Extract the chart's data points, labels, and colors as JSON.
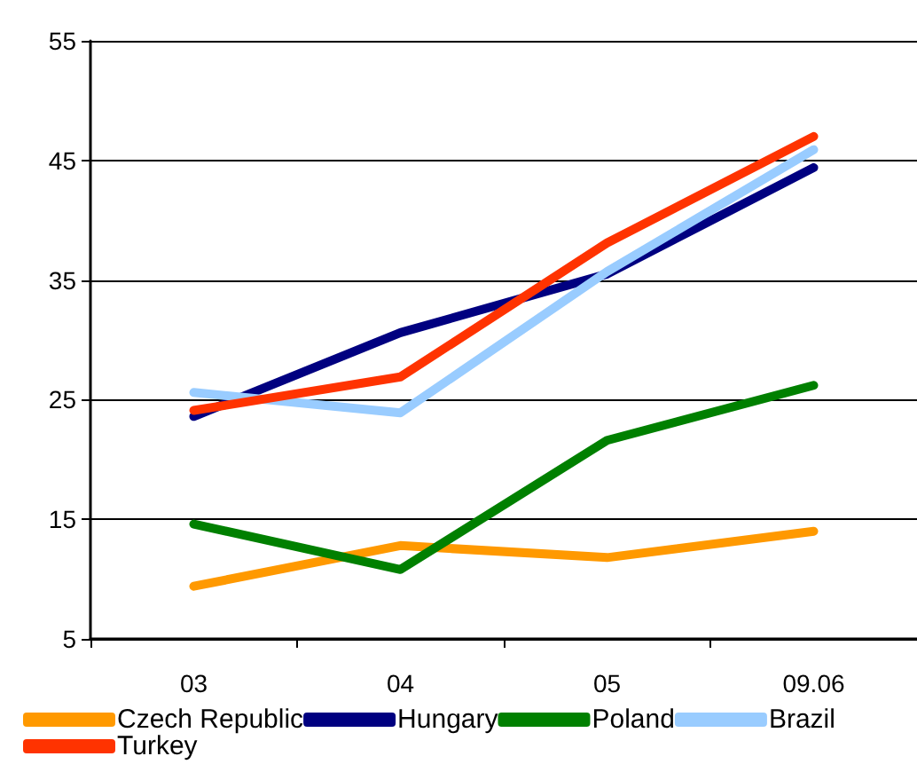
{
  "chart_data": {
    "type": "line",
    "categories": [
      "03",
      "04",
      "05",
      "09.06"
    ],
    "series": [
      {
        "name": "Czech Republic",
        "color": "#ff9900",
        "values": [
          9.4,
          12.8,
          11.8,
          14.0
        ]
      },
      {
        "name": "Hungary",
        "color": "#000080",
        "values": [
          23.6,
          30.6,
          35.5,
          44.4
        ]
      },
      {
        "name": "Poland",
        "color": "#008000",
        "values": [
          14.6,
          10.8,
          21.6,
          26.2
        ]
      },
      {
        "name": "Brazil",
        "color": "#99ccff",
        "values": [
          25.6,
          23.9,
          35.7,
          45.9
        ]
      },
      {
        "name": "Turkey",
        "color": "#ff3300",
        "values": [
          24.1,
          26.9,
          38.1,
          47.0
        ]
      }
    ],
    "ylim": [
      5,
      55
    ],
    "yticks": [
      5,
      15,
      25,
      35,
      45,
      55
    ],
    "grid": "y",
    "legend": "bottom",
    "marker": "none",
    "line_style": "solid"
  }
}
